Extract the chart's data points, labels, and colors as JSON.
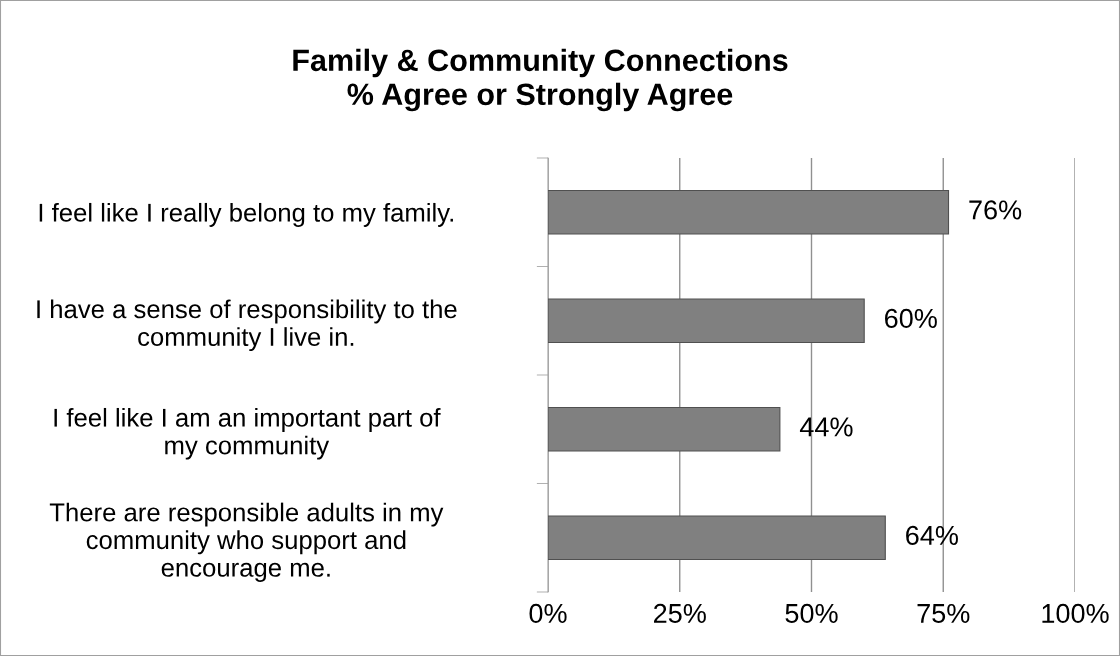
{
  "chart_data": {
    "type": "bar",
    "orientation": "horizontal",
    "title": "Family & Community Connections\n% Agree or Strongly Agree",
    "categories": [
      "I feel like I really belong to my family.",
      "I have a sense of responsibility to the\ncommunity I live in.",
      "I feel like I am an important part of\nmy community",
      "There are responsible adults in my\ncommunity who support and\nencourage me."
    ],
    "values": [
      76,
      60,
      44,
      64
    ],
    "value_labels": [
      "76%",
      "60%",
      "44%",
      "64%"
    ],
    "color": "#808080",
    "xlim": [
      0,
      100
    ],
    "xticks": [
      {
        "value": 0,
        "label": "0%"
      },
      {
        "value": 25,
        "label": "25%"
      },
      {
        "value": 50,
        "label": "50%"
      },
      {
        "value": 75,
        "label": "75%"
      },
      {
        "value": 100,
        "label": "100%"
      }
    ],
    "grid": "x",
    "legend": false
  }
}
